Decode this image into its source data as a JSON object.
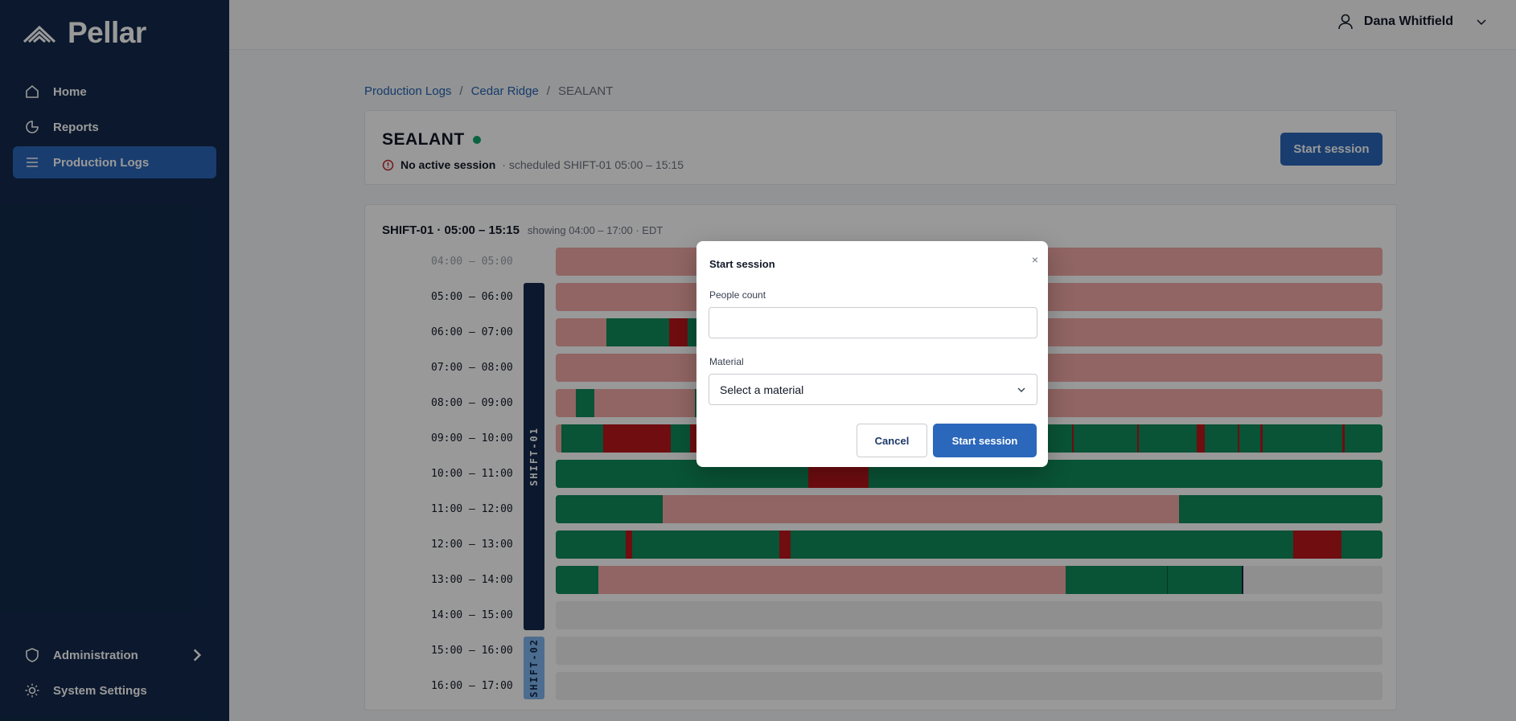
{
  "app": {
    "name": "Pellar"
  },
  "sidebar": {
    "items": [
      {
        "label": "Home",
        "icon": "home-icon"
      },
      {
        "label": "Reports",
        "icon": "pie-chart-icon"
      },
      {
        "label": "Production Logs",
        "icon": "list-icon",
        "active": true
      }
    ],
    "bottom": [
      {
        "label": "Administration",
        "icon": "shield-icon"
      },
      {
        "label": "System Settings",
        "icon": "sun-icon"
      }
    ]
  },
  "user": {
    "name": "Dana Whitfield"
  },
  "breadcrumb": [
    "Production Logs",
    "Cedar Ridge",
    "SEALANT"
  ],
  "line": {
    "name": "SEALANT",
    "status": "No active session",
    "scheduled": "· scheduled SHIFT-01 05:00 – 15:15",
    "start_button": "Start session"
  },
  "timeline": {
    "shift_title": "SHIFT-01 · 05:00 – 15:15",
    "range_note": "showing 04:00 – 17:00 · EDT",
    "shifts": [
      "SHIFT-01",
      "SHIFT-02"
    ],
    "rows": [
      "04:00 – 05:00",
      "05:00 – 06:00",
      "06:00 – 07:00",
      "07:00 – 08:00",
      "08:00 – 09:00",
      "09:00 – 10:00",
      "10:00 – 11:00",
      "11:00 – 12:00",
      "12:00 – 13:00",
      "13:00 – 14:00",
      "14:00 – 15:00",
      "15:00 – 16:00",
      "16:00 – 17:00"
    ]
  },
  "colors": {
    "running": "#108a5a",
    "stopped": "#b9161b",
    "idle": "#f0a8a6",
    "future": "#efefef",
    "accent": "#2b67ba",
    "sidebar": "#13294b"
  },
  "modal": {
    "title": "Start session",
    "close": "×",
    "people_label": "People count",
    "people_value": "",
    "material_label": "Material",
    "material_placeholder": "Select a material",
    "cancel": "Cancel",
    "submit": "Start session"
  }
}
